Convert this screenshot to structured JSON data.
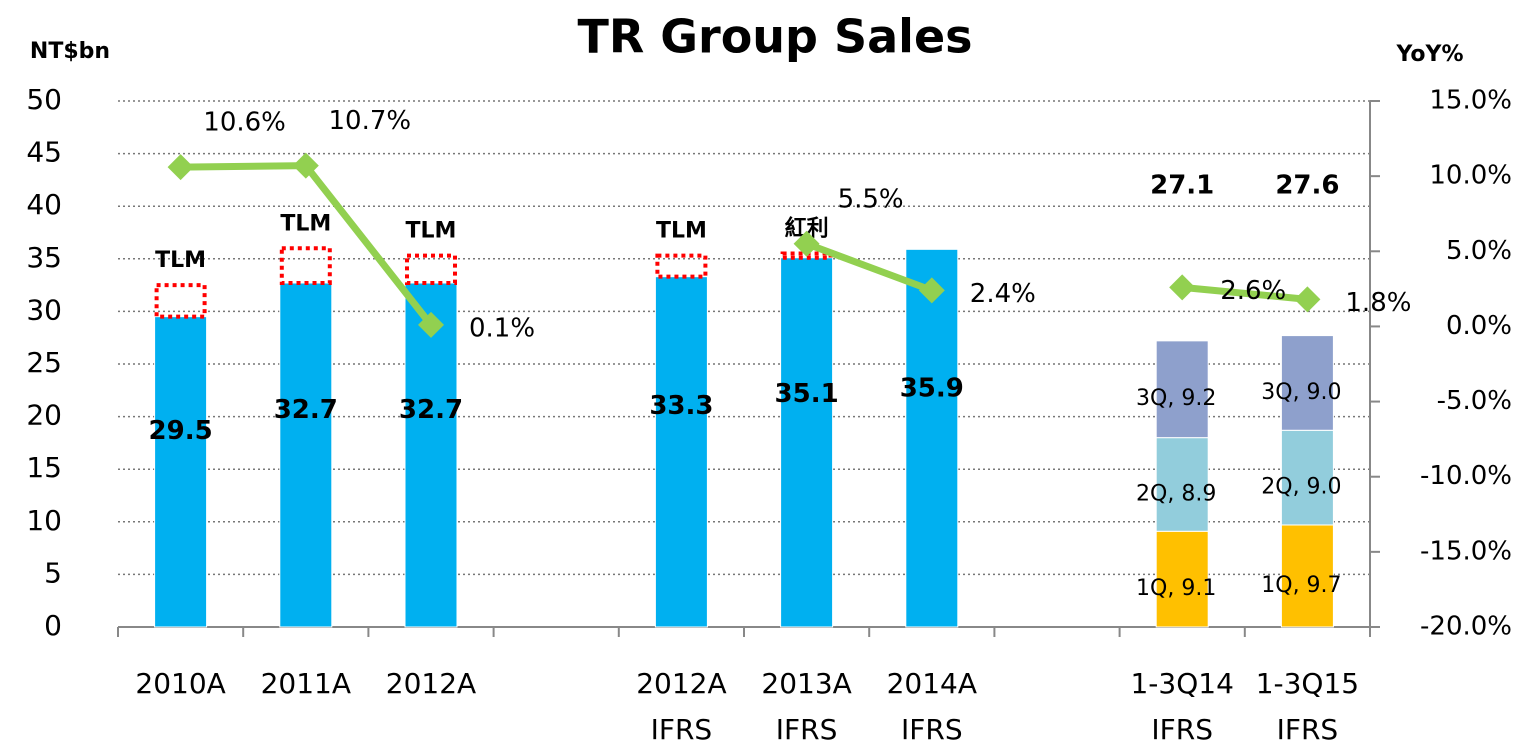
{
  "chart_data": {
    "type": "bar",
    "title": "TR Group Sales",
    "y_label": "NT$bn",
    "y2_label": "YoY%",
    "categories": [
      "2010A",
      "2011A",
      "2012A",
      null,
      "2012A",
      "2013A",
      "2014A",
      null,
      "1-3Q14",
      "1-3Q15"
    ],
    "category_notes": [
      null,
      null,
      null,
      null,
      "IFRS",
      "IFRS",
      "IFRS",
      null,
      "IFRS",
      "IFRS"
    ],
    "stacked": true,
    "series": [
      {
        "kind": "bar",
        "color": "#00b0f0",
        "values": [
          29.5,
          32.7,
          32.7,
          null,
          33.3,
          35.1,
          35.9,
          null,
          null,
          null
        ]
      },
      {
        "kind": "bar",
        "style": "dotted",
        "color": "#ff0000",
        "values": [
          3.0,
          3.3,
          2.6,
          null,
          2.0,
          0.4,
          null,
          null,
          null,
          null
        ],
        "labels": [
          "TLM",
          "TLM",
          "TLM",
          null,
          "TLM",
          "紅利",
          null,
          null,
          null,
          null
        ]
      },
      {
        "kind": "bar",
        "color": "#ffc000",
        "values": [
          null,
          null,
          null,
          null,
          null,
          null,
          null,
          null,
          9.1,
          9.7
        ],
        "value_labels": [
          null,
          null,
          null,
          null,
          null,
          null,
          null,
          null,
          "1Q, 9.1",
          "1Q, 9.7"
        ]
      },
      {
        "kind": "bar",
        "color": "#92cddc",
        "values": [
          null,
          null,
          null,
          null,
          null,
          null,
          null,
          null,
          8.9,
          9.0
        ],
        "value_labels": [
          null,
          null,
          null,
          null,
          null,
          null,
          null,
          null,
          "2Q, 8.9",
          "2Q, 9.0"
        ]
      },
      {
        "kind": "bar",
        "color": "#8ea0cc",
        "values": [
          null,
          null,
          null,
          null,
          null,
          null,
          null,
          null,
          9.2,
          9.0
        ],
        "value_labels": [
          null,
          null,
          null,
          null,
          null,
          null,
          null,
          null,
          "3Q, 9.2",
          "3Q, 9.0"
        ]
      },
      {
        "kind": "line",
        "axis": "y2",
        "color": "#92d050",
        "values": [
          10.6,
          10.7,
          0.1,
          null,
          null,
          5.5,
          2.4,
          null,
          2.6,
          1.8
        ],
        "value_labels": [
          "10.6%",
          "10.7%",
          "0.1%",
          null,
          null,
          "5.5%",
          "2.4%",
          null,
          "2.6%",
          "1.8%"
        ]
      }
    ],
    "totals": [
      null,
      null,
      null,
      null,
      null,
      null,
      null,
      null,
      27.1,
      27.6
    ],
    "ylim": [
      0,
      50
    ],
    "yticks": [
      0,
      5,
      10,
      15,
      20,
      25,
      30,
      35,
      40,
      45,
      50
    ],
    "y2lim": [
      -20,
      15
    ],
    "y2ticks": [
      {
        "value": -20,
        "label": "-20.0%"
      },
      {
        "value": -15,
        "label": "-15.0%"
      },
      {
        "value": -10,
        "label": "-10.0%"
      },
      {
        "value": -5,
        "label": "-5.0%"
      },
      {
        "value": 0,
        "label": "0.0%"
      },
      {
        "value": 5,
        "label": "5.0%"
      },
      {
        "value": 10,
        "label": "10.0%"
      },
      {
        "value": 15,
        "label": "15.0%"
      }
    ],
    "grid": true
  }
}
